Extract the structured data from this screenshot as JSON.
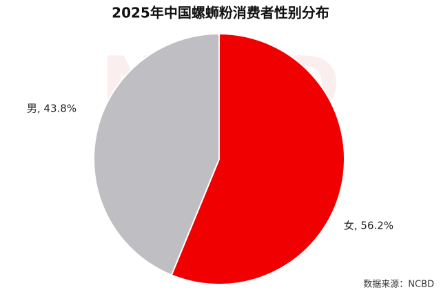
{
  "chart_data": {
    "type": "pie",
    "title": "2025年中国螺蛳粉消费者性别分布",
    "values": [
      56.2,
      43.8
    ],
    "value_labels": [
      "女, 56.2%",
      "男, 43.8%"
    ],
    "colors": [
      "#f00000",
      "#bfbfc3"
    ],
    "source": "数据来源：NCBD",
    "watermark": "NCBD"
  }
}
